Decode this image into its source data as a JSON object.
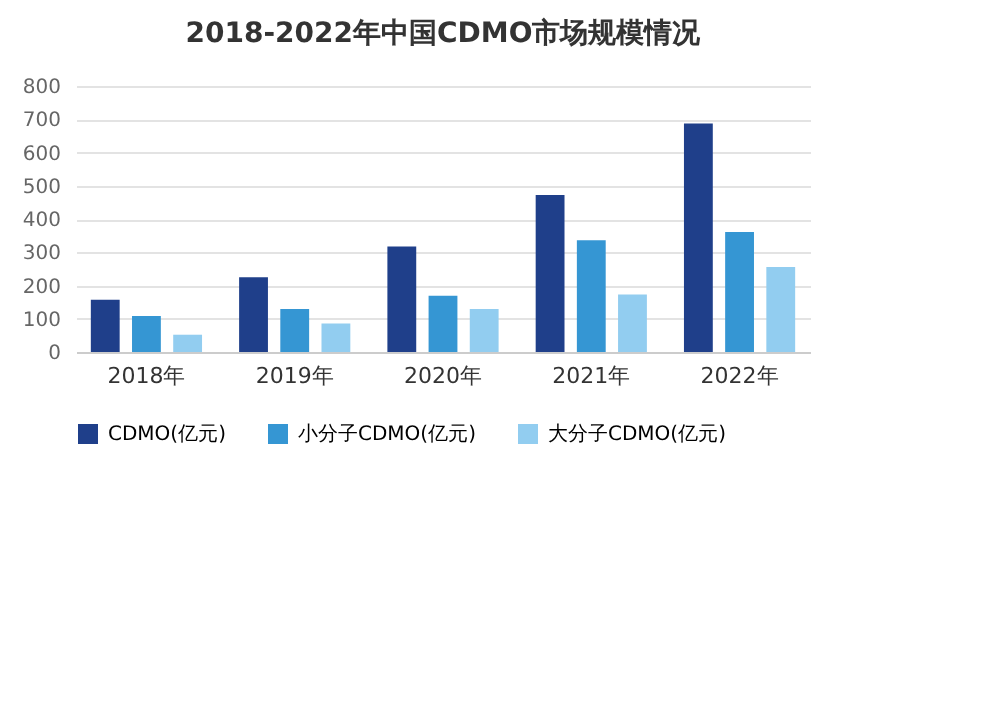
{
  "chart_data": {
    "type": "bar",
    "title": "2018-2022年中国CDMO市场规模情况",
    "categories": [
      "2018年",
      "2019年",
      "2020年",
      "2021年",
      "2022年"
    ],
    "series": [
      {
        "name": "CDMO(亿元)",
        "color": "#1f3f8a",
        "values": [
          157,
          225,
          317,
          472,
          687
        ]
      },
      {
        "name": "小分子CDMO(亿元)",
        "color": "#3596d3",
        "values": [
          108,
          129,
          169,
          336,
          361
        ]
      },
      {
        "name": "大分子CDMO(亿元)",
        "color": "#92cdf0",
        "values": [
          52,
          86,
          129,
          173,
          256
        ]
      }
    ],
    "ylim": [
      0,
      800
    ],
    "yticks": [
      0,
      100,
      200,
      300,
      400,
      500,
      600,
      700,
      800
    ],
    "grid": "y",
    "legend": "bottom"
  }
}
